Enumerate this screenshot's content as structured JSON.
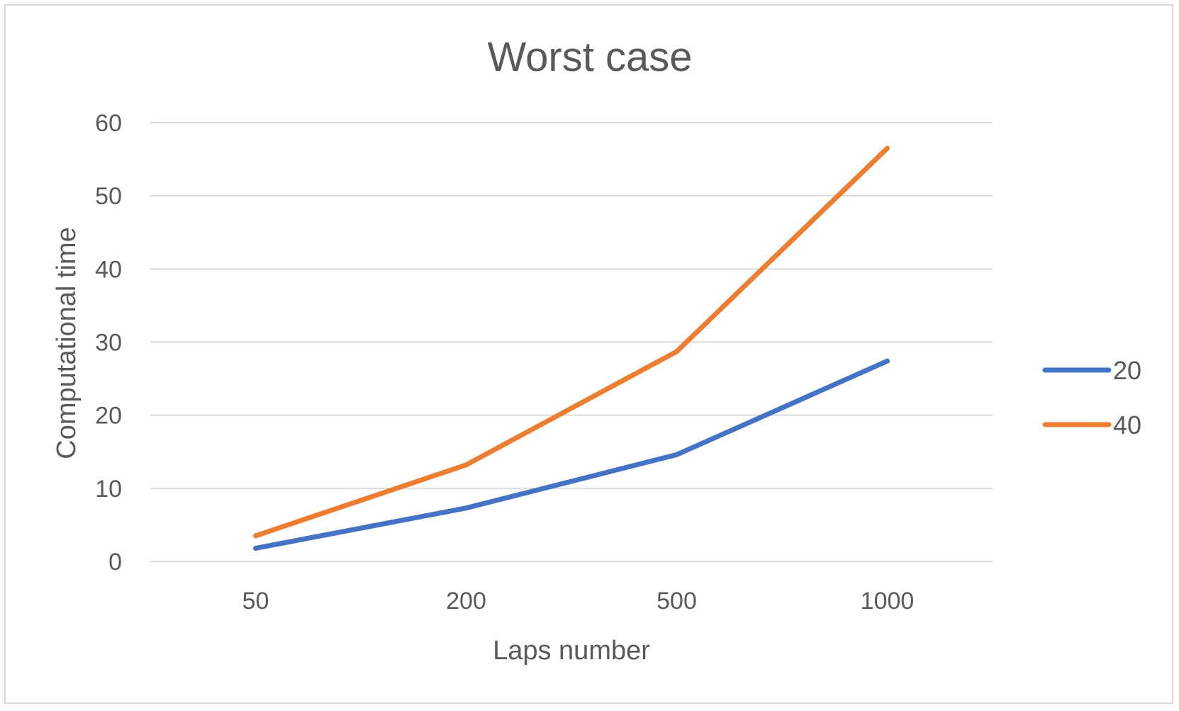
{
  "chart_data": {
    "type": "line",
    "title": "Worst case",
    "xlabel": "Laps number",
    "ylabel": "Computational time",
    "categories": [
      "50",
      "200",
      "500",
      "1000"
    ],
    "ylim": [
      0,
      60
    ],
    "yticks": [
      "0",
      "10",
      "20",
      "30",
      "40",
      "50",
      "60"
    ],
    "grid": true,
    "legend_position": "right",
    "series": [
      {
        "name": "20",
        "color": "#4472c4",
        "values": [
          1.8,
          7.3,
          14.6,
          27.4
        ]
      },
      {
        "name": "40",
        "color": "#ed7d31",
        "values": [
          3.5,
          13.2,
          28.7,
          56.5
        ]
      }
    ]
  }
}
